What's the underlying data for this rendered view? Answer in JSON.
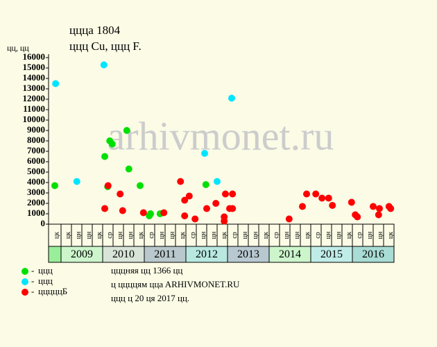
{
  "chart_data": {
    "type": "scatter",
    "title": "ццца 1804",
    "subtitle": "ццц Cu, ццц F.",
    "y_label": "цц, цц",
    "watermark": "arhivmonet.ru",
    "xlim": [
      2008.7,
      2017
    ],
    "ylim": [
      0,
      16000
    ],
    "yticks": [
      0,
      1000,
      2000,
      3000,
      4000,
      5000,
      6000,
      7000,
      8000,
      9000,
      10000,
      11000,
      12000,
      13000,
      14000,
      15000,
      16000
    ],
    "columns": [
      "цк",
      "цк",
      "цн",
      "цн",
      "цк",
      "ср",
      "цн",
      "цн",
      "цк",
      "ср",
      "цн",
      "цн",
      "цк",
      "ср",
      "цн",
      "цн",
      "цк",
      "ср",
      "цн",
      "цн",
      "цк",
      "ср",
      "цн",
      "цн",
      "цк",
      "ср",
      "цн",
      "цн",
      "цк",
      "ср",
      "цн",
      "цн",
      "цк"
    ],
    "years": [
      null,
      "2009",
      "2010",
      "2011",
      "2012",
      "2013",
      "2014",
      "2015",
      "2016"
    ],
    "year_colors": [
      "#99ee99",
      "#ccf5cc",
      "#d8e4d8",
      "#b8c8cc",
      "#b8e8e0",
      "#b8c8d0",
      "#ccf5cc",
      "#c0ece8",
      "#a8dcd4"
    ],
    "series": [
      {
        "name": "ццц",
        "color": "#00e000",
        "x": [
          2008.85,
          2010.05,
          2010.12,
          2010.17,
          2010.23,
          2010.58,
          2010.63,
          2010.9,
          2011.12,
          2011.15,
          2011.38,
          2012.48
        ],
        "values": [
          3700,
          6500,
          3600,
          8000,
          7700,
          9000,
          5300,
          3700,
          800,
          1000,
          1000,
          3800
        ]
      },
      {
        "name": "ццц",
        "color": "#00e5ff",
        "x": [
          2008.87,
          2009.38,
          2010.03,
          2012.45,
          2012.75,
          2013.1
        ],
        "values": [
          13500,
          4100,
          15300,
          6800,
          4100,
          12100
        ]
      },
      {
        "name": "цццццБ",
        "color": "#ff0000",
        "x": [
          2010.05,
          2010.13,
          2010.42,
          2010.48,
          2010.98,
          2011.47,
          2011.87,
          2011.97,
          2012.08,
          2011.97,
          2012.22,
          2012.5,
          2012.72,
          2012.92,
          2012.92,
          2012.95,
          2013.05,
          2013.12,
          2013.12,
          2014.48,
          2014.8,
          2014.9,
          2015.12,
          2015.27,
          2015.43,
          2015.52,
          2015.98,
          2016.07,
          2016.12,
          2016.5,
          2016.63,
          2016.65,
          2016.88,
          2016.92
        ],
        "values": [
          1500,
          3700,
          2900,
          1300,
          1100,
          1100,
          4100,
          2300,
          2700,
          800,
          500,
          1500,
          2000,
          700,
          300,
          2900,
          1500,
          1500,
          2900,
          500,
          1700,
          2900,
          2900,
          2500,
          2500,
          1800,
          2100,
          900,
          700,
          1700,
          900,
          1500,
          1700,
          1500
        ]
      }
    ],
    "footer": [
      "цццняя цц 1366 цц",
      "ц ццццям ццa ARHIVMONET.RU",
      "ццц ц 20 ця 2017 цц."
    ]
  }
}
